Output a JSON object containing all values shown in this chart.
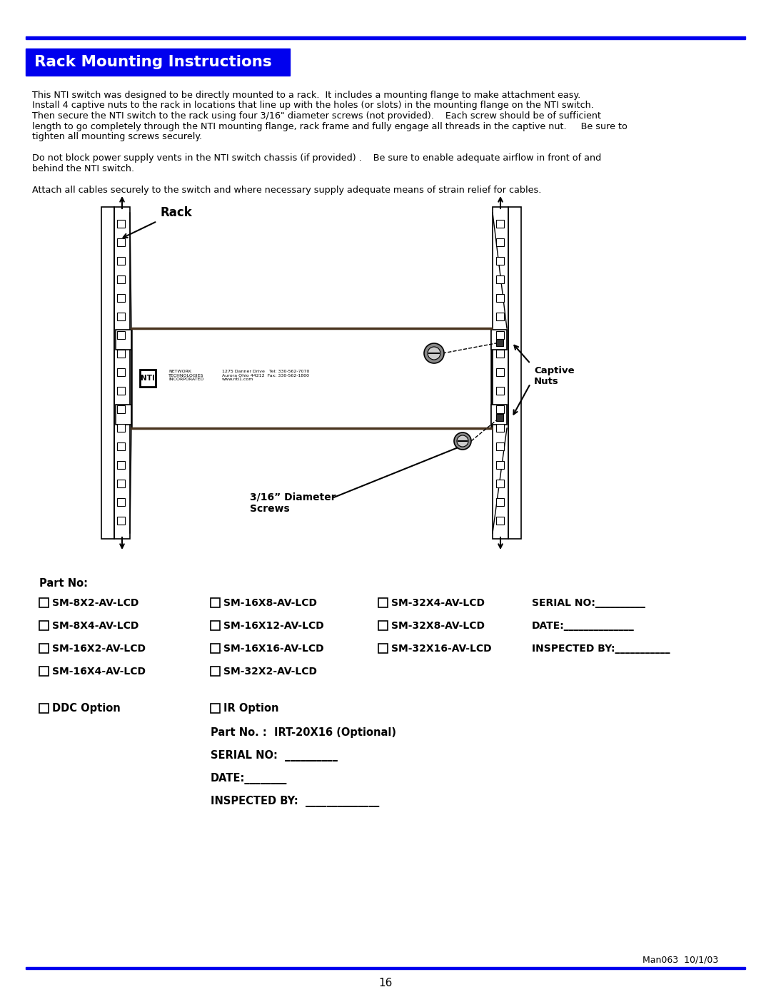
{
  "title": "Rack Mounting Instructions",
  "title_bg": "#0000EE",
  "title_color": "#FFFFFF",
  "header_line_color": "#0000EE",
  "body_text_line1": "This NTI switch was designed to be directly mounted to a rack.  It includes a mounting flange to make attachment easy.",
  "body_text_line2": "Install 4 captive nuts to the rack in locations that line up with the holes (or slots) in the mounting flange on the NTI switch.",
  "body_text_line3": "Then secure the NTI switch to the rack using four 3/16\" diameter screws (not provided).    Each screw should be of sufficient",
  "body_text_line4": "length to go completely through the NTI mounting flange, rack frame and fully engage all threads in the captive nut.     Be sure to",
  "body_text_line5": "tighten all mounting screws securely.",
  "body_text2_line1": "Do not block power supply vents in the NTI switch chassis (if provided) .    Be sure to enable adequate airflow in front of and",
  "body_text2_line2": "behind the NTI switch.",
  "body_text3": "Attach all cables securely to the switch and where necessary supply adequate means of strain relief for cables.",
  "part_no_label": "Part No:",
  "col1_items": [
    "SM-8X2-AV-LCD",
    "SM-8X4-AV-LCD",
    "SM-16X2-AV-LCD",
    "SM-16X4-AV-LCD"
  ],
  "col2_items": [
    "SM-16X8-AV-LCD",
    "SM-16X12-AV-LCD",
    "SM-16X16-AV-LCD",
    "SM-32X2-AV-LCD"
  ],
  "col3_items": [
    "SM-32X4-AV-LCD",
    "SM-32X8-AV-LCD",
    "SM-32X16-AV-LCD"
  ],
  "serial_no_label": "SERIAL NO:__________",
  "date_label": "DATE:______________",
  "inspected_label": "INSPECTED BY:___________",
  "ddc_label": "DDC Option",
  "ir_label": "IR Option",
  "ir_partno": "Part No. :  IRT-20X16 (Optional)",
  "ir_serial": "SERIAL NO:  __________",
  "ir_date": "DATE:________",
  "ir_inspected": "INSPECTED BY:  ______________",
  "footer_text": "Man063  10/1/03",
  "page_number": "16",
  "bg_color": "#FFFFFF",
  "text_color": "#000000",
  "rack_label": "Rack",
  "captive_label": "Captive\nNuts",
  "screw_label": "3/16” Diameter\nScrews"
}
